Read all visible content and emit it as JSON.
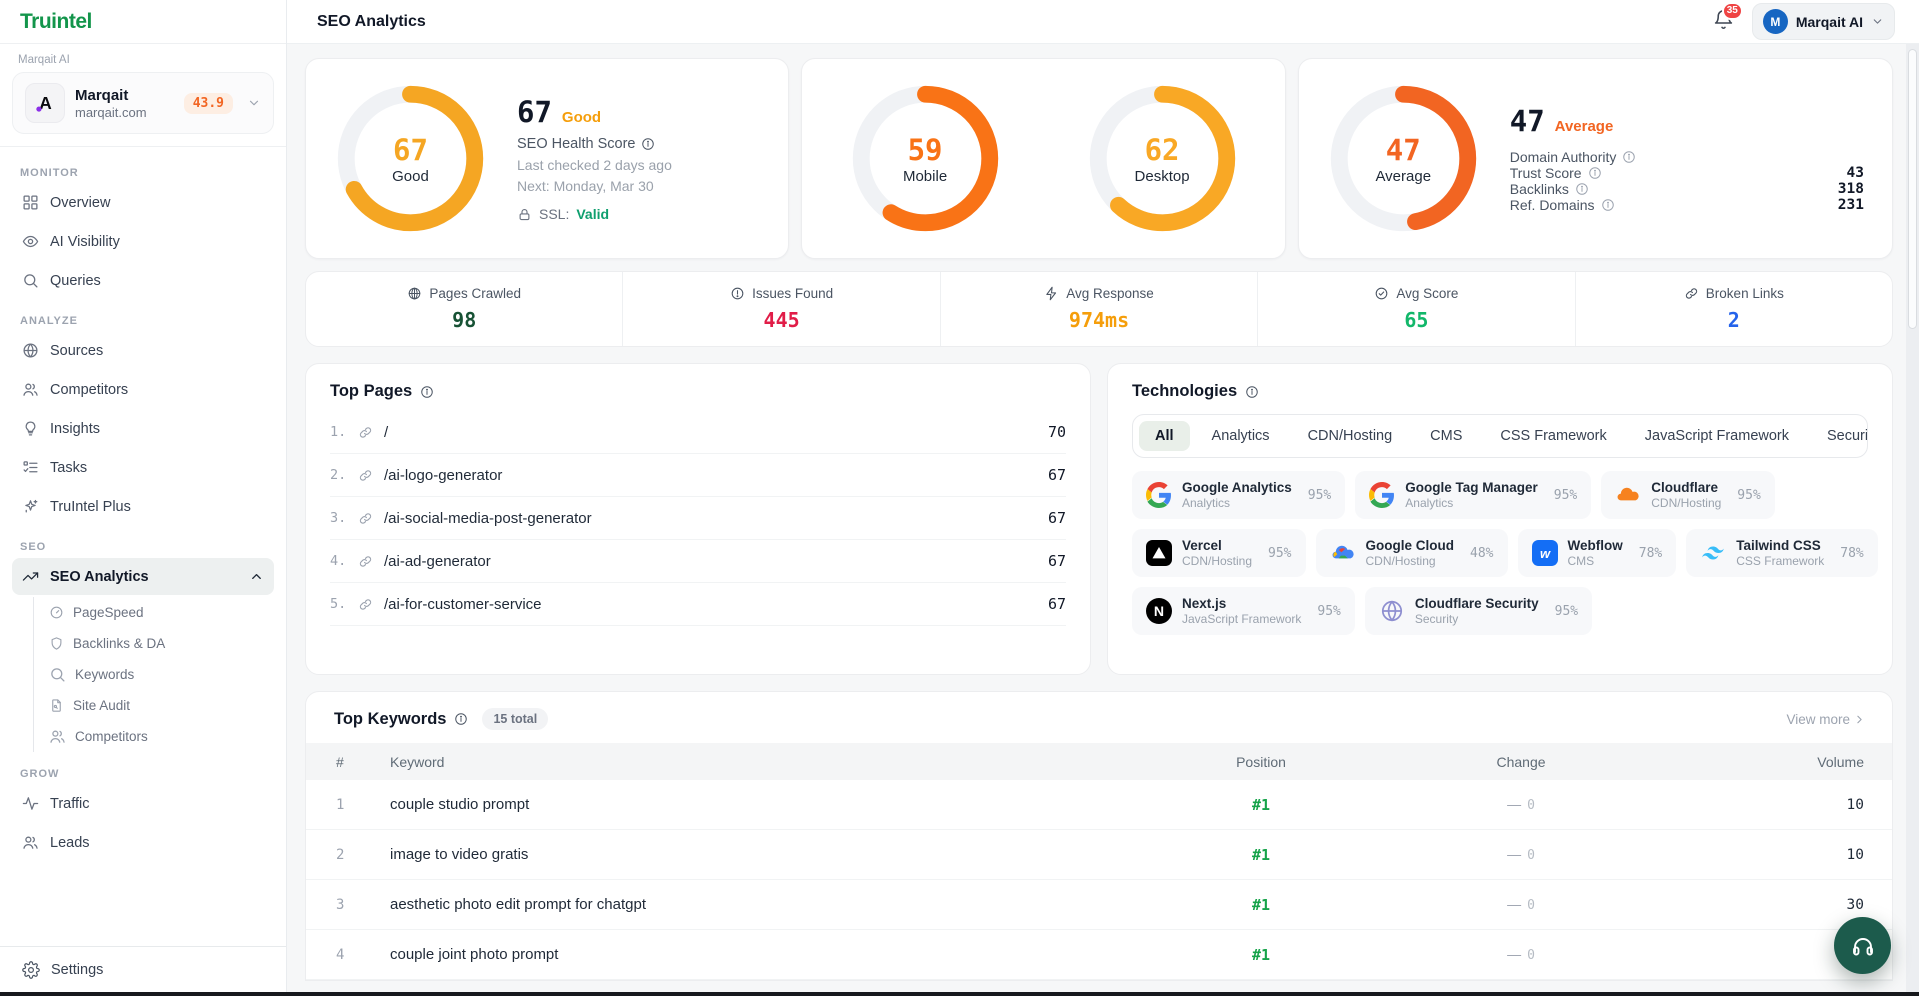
{
  "sidebar": {
    "logo_text": "Truintel",
    "org_label": "Marqait AI",
    "account": {
      "name": "Marqait",
      "domain": "marqait.com",
      "score": "43.9",
      "logo_letter": "A"
    },
    "sections": [
      {
        "label": "MONITOR",
        "items": [
          {
            "label": "Overview",
            "icon": "grid"
          },
          {
            "label": "AI Visibility",
            "icon": "eye"
          },
          {
            "label": "Queries",
            "icon": "search"
          }
        ]
      },
      {
        "label": "ANALYZE",
        "items": [
          {
            "label": "Sources",
            "icon": "globe"
          },
          {
            "label": "Competitors",
            "icon": "users"
          },
          {
            "label": "Insights",
            "icon": "bulb"
          },
          {
            "label": "Tasks",
            "icon": "tasks"
          },
          {
            "label": "TruIntel Plus",
            "icon": "sparkles"
          }
        ]
      },
      {
        "label": "SEO",
        "items": [
          {
            "label": "SEO Analytics",
            "icon": "trend",
            "active": true,
            "children": [
              {
                "label": "PageSpeed",
                "icon": "gaugeIcon"
              },
              {
                "label": "Backlinks & DA",
                "icon": "shield"
              },
              {
                "label": "Keywords",
                "icon": "search"
              },
              {
                "label": "Site Audit",
                "icon": "doc"
              },
              {
                "label": "Competitors",
                "icon": "users"
              }
            ]
          }
        ]
      },
      {
        "label": "GROW",
        "items": [
          {
            "label": "Traffic",
            "icon": "pulse"
          },
          {
            "label": "Leads",
            "icon": "users"
          }
        ]
      }
    ],
    "settings_label": "Settings"
  },
  "header": {
    "title": "SEO Analytics",
    "notification_count": "35",
    "account_name": "Marqait AI",
    "account_initial": "M"
  },
  "cards": {
    "health": {
      "gauge": {
        "value": "67",
        "label": "Good",
        "pct": 67,
        "color": "#F5A623"
      },
      "score": "67",
      "status": "Good",
      "status_color": "#F59E0B",
      "title": "SEO Health Score",
      "line1": "Last checked 2 days ago",
      "line2": "Next: Monday, Mar 30",
      "ssl_label": "SSL:",
      "ssl_value": "Valid",
      "ssl_color": "#0E9F6E"
    },
    "speed": {
      "gauges": [
        {
          "value": "59",
          "label": "Mobile",
          "pct": 59,
          "color": "#F97316"
        },
        {
          "value": "62",
          "label": "Desktop",
          "pct": 62,
          "color": "#F9A825"
        }
      ]
    },
    "authority": {
      "gauge": {
        "value": "47",
        "label": "Average",
        "pct": 47,
        "color": "#F26522"
      },
      "score": "47",
      "status": "Average",
      "status_color": "#F26522",
      "metrics": [
        {
          "label": "Domain Authority",
          "value": ""
        },
        {
          "label": "Trust Score",
          "value": "43"
        },
        {
          "label": "Backlinks",
          "value": "318"
        },
        {
          "label": "Ref. Domains",
          "value": "231"
        }
      ]
    }
  },
  "stats": [
    {
      "icon": "web",
      "label": "Pages Crawled",
      "value": "98",
      "color": "#175235"
    },
    {
      "icon": "alert",
      "label": "Issues Found",
      "value": "445",
      "color": "#E11D48"
    },
    {
      "icon": "zap",
      "label": "Avg Response",
      "value": "974ms",
      "color": "#F59E0B"
    },
    {
      "icon": "checkc",
      "label": "Avg Score",
      "value": "65",
      "color": "#12B76A"
    },
    {
      "icon": "link",
      "label": "Broken Links",
      "value": "2",
      "color": "#2563EB"
    }
  ],
  "top_pages": {
    "title": "Top Pages",
    "rows": [
      {
        "rank": "1.",
        "path": "/",
        "score": "70"
      },
      {
        "rank": "2.",
        "path": "/ai-logo-generator",
        "score": "67"
      },
      {
        "rank": "3.",
        "path": "/ai-social-media-post-generator",
        "score": "67"
      },
      {
        "rank": "4.",
        "path": "/ai-ad-generator",
        "score": "67"
      },
      {
        "rank": "5.",
        "path": "/ai-for-customer-service",
        "score": "67"
      }
    ]
  },
  "technologies": {
    "title": "Technologies",
    "active_tab": "All",
    "tabs": [
      "All",
      "Analytics",
      "CDN/Hosting",
      "CMS",
      "CSS Framework",
      "JavaScript Framework",
      "Security"
    ],
    "row_chunks": [
      3,
      4,
      2
    ],
    "chips": [
      {
        "name": "Google Analytics",
        "category": "Analytics",
        "pct": "95%",
        "icon": "google"
      },
      {
        "name": "Google Tag Manager",
        "category": "Analytics",
        "pct": "95%",
        "icon": "google"
      },
      {
        "name": "Cloudflare",
        "category": "CDN/Hosting",
        "pct": "95%",
        "icon": "cloudflare"
      },
      {
        "name": "Vercel",
        "category": "CDN/Hosting",
        "pct": "95%",
        "icon": "vercel"
      },
      {
        "name": "Google Cloud",
        "category": "CDN/Hosting",
        "pct": "48%",
        "icon": "gcloud"
      },
      {
        "name": "Webflow",
        "category": "CMS",
        "pct": "78%",
        "icon": "webflow"
      },
      {
        "name": "Tailwind CSS",
        "category": "CSS Framework",
        "pct": "78%",
        "icon": "tailwind"
      },
      {
        "name": "Next.js",
        "category": "JavaScript Framework",
        "pct": "95%",
        "icon": "nextjs"
      },
      {
        "name": "Cloudflare Security",
        "category": "Security",
        "pct": "95%",
        "icon": "cfsecurity"
      }
    ]
  },
  "top_keywords": {
    "title": "Top Keywords",
    "badge": "15 total",
    "view_more": "View more",
    "columns": {
      "num": "#",
      "keyword": "Keyword",
      "position": "Position",
      "change": "Change",
      "volume": "Volume"
    },
    "rows": [
      {
        "n": "1",
        "keyword": "couple studio prompt",
        "position": "#1",
        "change": "0",
        "volume": "10"
      },
      {
        "n": "2",
        "keyword": "image to video gratis",
        "position": "#1",
        "change": "0",
        "volume": "10"
      },
      {
        "n": "3",
        "keyword": "aesthetic photo edit prompt for chatgpt",
        "position": "#1",
        "change": "0",
        "volume": "30"
      },
      {
        "n": "4",
        "keyword": "couple joint photo prompt",
        "position": "#1",
        "change": "0",
        "volume": "30"
      }
    ]
  }
}
